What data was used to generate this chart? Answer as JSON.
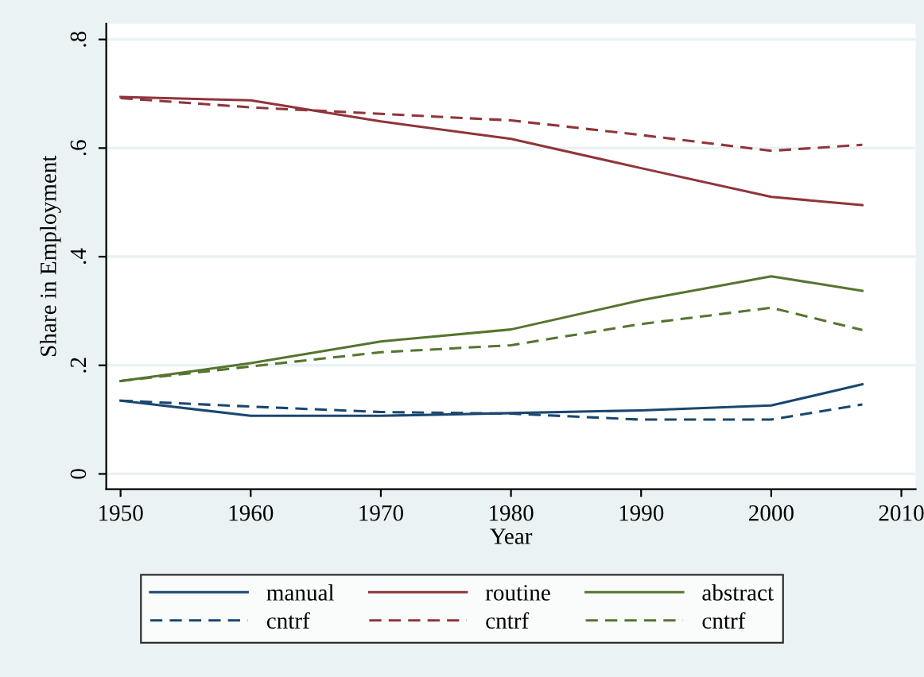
{
  "chart_data": {
    "type": "line",
    "xlabel": "Year",
    "ylabel": "Share in Employment",
    "x": [
      1950,
      1960,
      1970,
      1980,
      1990,
      2000,
      2007
    ],
    "series": [
      {
        "name": "manual",
        "color": "#1a476f",
        "line_style": "solid",
        "values": [
          0.135,
          0.107,
          0.107,
          0.112,
          0.117,
          0.126,
          0.165
        ]
      },
      {
        "name": "cntrf",
        "color": "#1a476f",
        "line_style": "dashed",
        "values": [
          0.135,
          0.124,
          0.114,
          0.111,
          0.1,
          0.1,
          0.128
        ]
      },
      {
        "name": "routine",
        "color": "#90353b",
        "line_style": "solid",
        "values": [
          0.694,
          0.688,
          0.649,
          0.617,
          0.563,
          0.51,
          0.495
        ]
      },
      {
        "name": "cntrf",
        "color": "#90353b",
        "line_style": "dashed",
        "values": [
          0.692,
          0.675,
          0.663,
          0.651,
          0.624,
          0.595,
          0.606
        ]
      },
      {
        "name": "abstract",
        "color": "#55752f",
        "line_style": "solid",
        "values": [
          0.171,
          0.204,
          0.244,
          0.266,
          0.32,
          0.364,
          0.337
        ]
      },
      {
        "name": "cntrf",
        "color": "#55752f",
        "line_style": "dashed",
        "values": [
          0.171,
          0.198,
          0.224,
          0.237,
          0.276,
          0.306,
          0.265
        ]
      }
    ],
    "xlim": [
      1948.9,
      2011.1
    ],
    "xticks": [
      1950,
      1960,
      1970,
      1980,
      1990,
      2000,
      2010
    ],
    "ylim": [
      -0.028,
      0.829
    ],
    "yticks": [
      {
        "value": 0,
        "label": "0"
      },
      {
        "value": 0.2,
        "label": ".2"
      },
      {
        "value": 0.4,
        "label": ".4"
      },
      {
        "value": 0.6,
        "label": ".6"
      },
      {
        "value": 0.8,
        "label": ".8"
      }
    ],
    "grid": "y",
    "legend": "bottom",
    "marker": "none"
  }
}
